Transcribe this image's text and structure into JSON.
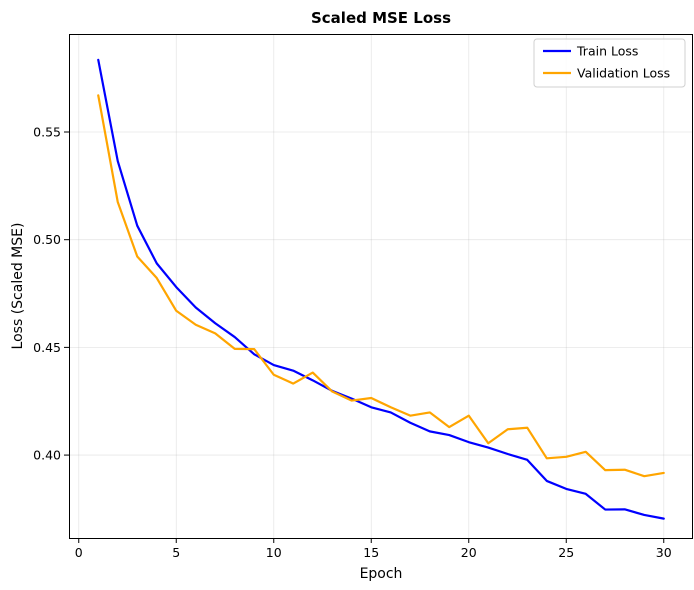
{
  "chart_data": {
    "type": "line",
    "title": "Scaled MSE Loss",
    "xlabel": "Epoch",
    "ylabel": "Loss (Scaled MSE)",
    "xlim": [
      -0.5,
      31.5
    ],
    "ylim": [
      0.3615,
      0.5955
    ],
    "xticks": [
      0,
      5,
      10,
      15,
      20,
      25,
      30
    ],
    "xtick_labels": [
      "0",
      "5",
      "10",
      "15",
      "20",
      "25",
      "30"
    ],
    "yticks": [
      0.4,
      0.45,
      0.5,
      0.55
    ],
    "ytick_labels": [
      "0.40",
      "0.45",
      "0.50",
      "0.55"
    ],
    "grid": true,
    "legend_position": "top-right",
    "x": [
      1,
      2,
      3,
      4,
      5,
      6,
      7,
      8,
      9,
      10,
      11,
      12,
      13,
      14,
      15,
      16,
      17,
      18,
      19,
      20,
      21,
      22,
      23,
      24,
      25,
      26,
      27,
      28,
      29,
      30
    ],
    "series": [
      {
        "name": "Train Loss",
        "color": "#0000ff",
        "values": [
          0.5835,
          0.5365,
          0.5065,
          0.489,
          0.478,
          0.4685,
          0.4612,
          0.4548,
          0.4468,
          0.4418,
          0.4392,
          0.4347,
          0.4298,
          0.4262,
          0.4222,
          0.4198,
          0.415,
          0.411,
          0.4093,
          0.406,
          0.4035,
          0.4005,
          0.3978,
          0.388,
          0.3843,
          0.382,
          0.3747,
          0.3748,
          0.3722,
          0.3705
        ]
      },
      {
        "name": "Validation Loss",
        "color": "#ffa500",
        "values": [
          0.567,
          0.5175,
          0.4922,
          0.4822,
          0.467,
          0.4605,
          0.4565,
          0.4493,
          0.4492,
          0.4373,
          0.4332,
          0.4383,
          0.4295,
          0.4253,
          0.4265,
          0.4222,
          0.4183,
          0.4198,
          0.413,
          0.4183,
          0.4055,
          0.412,
          0.4127,
          0.3985,
          0.3992,
          0.4015,
          0.393,
          0.3932,
          0.3902,
          0.3917
        ]
      }
    ]
  }
}
